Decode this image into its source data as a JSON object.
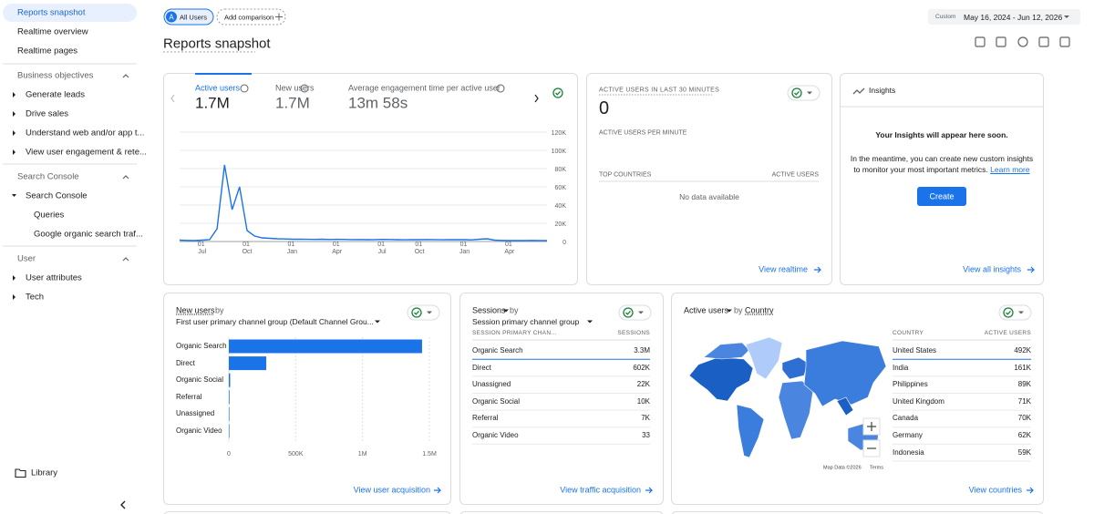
{
  "sidebar": {
    "top_items": [
      "Reports snapshot",
      "Realtime overview",
      "Realtime pages"
    ],
    "sections": [
      {
        "title": "Business objectives",
        "items": [
          "Generate leads",
          "Drive sales",
          "Understand web and/or app t...",
          "View user engagement & rete..."
        ],
        "subitems": []
      },
      {
        "title": "Search Console",
        "items": [
          "Search Console"
        ],
        "subitems": [
          "Queries",
          "Google organic search traf..."
        ]
      },
      {
        "title": "User",
        "items": [
          "User attributes",
          "Tech"
        ],
        "subitems": []
      }
    ],
    "library": "Library"
  },
  "header": {
    "segment_avatar": "A",
    "segment": "All Users",
    "add_comparison": "Add comparison",
    "date_label": "Custom",
    "date_range": "May 16, 2024 - Jun 12, 2026",
    "title": "Reports snapshot"
  },
  "overview": {
    "metrics": [
      {
        "label": "Active users",
        "value": "1.7M"
      },
      {
        "label": "New users",
        "value": "1.7M"
      },
      {
        "label": "Average engagement time per active user",
        "value": "13m 58s"
      }
    ]
  },
  "chart_data": [
    {
      "type": "line",
      "color": "#1a73e8",
      "categories": [
        null,
        null,
        null,
        "01 Jul",
        null,
        null,
        null,
        null,
        null,
        "01 Oct",
        null,
        null,
        null,
        null,
        null,
        "01 Jan",
        null,
        null,
        null,
        null,
        null,
        "01 Apr",
        null,
        null,
        null,
        null,
        null,
        "01 Jul",
        null,
        null,
        null,
        null,
        "01 Oct",
        null,
        null,
        null,
        null,
        null,
        "01 Jan",
        null,
        null,
        null,
        null,
        null,
        "01 Apr",
        null,
        null,
        null,
        null,
        null
      ],
      "values": [
        1500,
        1200,
        1000,
        1500,
        2000,
        14000,
        84000,
        35000,
        60000,
        12000,
        6000,
        4000,
        3500,
        3000,
        2800,
        2500,
        2600,
        2400,
        2300,
        2500,
        2200,
        2400,
        2300,
        2100,
        2200,
        2000,
        2100,
        2300,
        2200,
        2000,
        1900,
        2100,
        2000,
        2200,
        2100,
        1900,
        2000,
        2100,
        2000,
        1800,
        2500,
        3000,
        1500,
        1200,
        1000,
        1100,
        1000,
        1200,
        1100,
        1000
      ],
      "ylim": [
        0,
        120000
      ],
      "yticks": [
        0,
        {
          "value": 20000,
          "label": "20K"
        },
        {
          "value": 40000,
          "label": "40K"
        },
        {
          "value": 60000,
          "label": "60K"
        },
        {
          "value": 80000,
          "label": "80K"
        },
        {
          "value": 100000,
          "label": "100K"
        },
        {
          "value": 120000,
          "label": "120K"
        }
      ],
      "grid": true
    },
    {
      "type": "hbar",
      "title": "New users",
      "title_by": "by",
      "dimension": "First user primary channel group (Default Channel Grou...",
      "color": "#1a73e8",
      "categories": [
        "Organic Search",
        "Direct",
        "Organic Social",
        "Referral",
        "Unassigned",
        "Organic Video"
      ],
      "values": [
        1445000,
        280000,
        10000,
        5000,
        3000,
        1000
      ],
      "xlim": [
        0,
        1500000
      ],
      "xticks": [
        0,
        {
          "value": 500000,
          "label": "500K"
        },
        {
          "value": 1000000,
          "label": "1M"
        },
        {
          "value": 1500000,
          "label": "1.5M"
        }
      ],
      "grid": true,
      "link": "View user acquisition"
    }
  ],
  "realtime": {
    "title": "ACTIVE USERS IN LAST 30 MINUTES",
    "value": "0",
    "per_minute": "ACTIVE USERS PER MINUTE",
    "col_country": "TOP COUNTRIES",
    "col_users": "ACTIVE USERS",
    "empty": "No data available",
    "link": "View realtime"
  },
  "insights": {
    "title": "Insights",
    "heading": "Your Insights will appear here soon.",
    "body": "In the meantime, you can create new custom insights to monitor your most important metrics.",
    "learn_more": "Learn more",
    "button": "Create",
    "link": "View all insights"
  },
  "sessions_card": {
    "metric": "Sessions",
    "by": "by",
    "dimension": "Session primary channel group",
    "columns": [
      "SESSION PRIMARY CHAN...",
      "SESSIONS"
    ],
    "rows": [
      [
        "Organic Search",
        "3.3M"
      ],
      [
        "Direct",
        "602K"
      ],
      [
        "Unassigned",
        "22K"
      ],
      [
        "Organic Social",
        "10K"
      ],
      [
        "Referral",
        "7K"
      ],
      [
        "Organic Video",
        "33"
      ]
    ],
    "link": "View traffic acquisition"
  },
  "country_card": {
    "metric": "Active users",
    "by": "by",
    "dimension": "Country",
    "columns": [
      "COUNTRY",
      "ACTIVE USERS"
    ],
    "rows": [
      [
        "United States",
        "492K"
      ],
      [
        "India",
        "161K"
      ],
      [
        "Philippines",
        "89K"
      ],
      [
        "United Kingdom",
        "71K"
      ],
      [
        "Canada",
        "70K"
      ],
      [
        "Germany",
        "62K"
      ],
      [
        "Indonesia",
        "59K"
      ]
    ],
    "map_credit": "Map Data ©2026",
    "map_terms": "Terms",
    "link": "View countries"
  }
}
